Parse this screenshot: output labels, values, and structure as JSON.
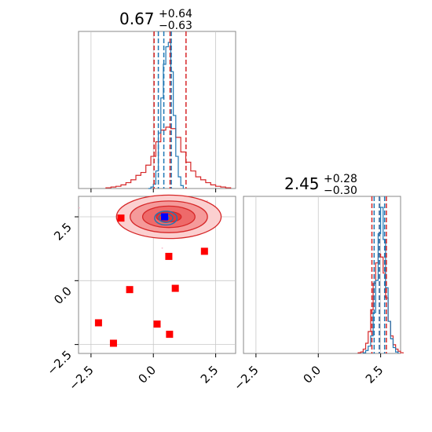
{
  "chart_data": {
    "type": "corner",
    "colors": {
      "blue": "#1f77b4",
      "red": "#d62728",
      "red_fill": "#ea5a5a",
      "pink_points": "#f5b7c8",
      "marker_red": "#ff0000",
      "marker_blue": "#0000ff",
      "grid": "#c8c8c8",
      "frame": "#888888"
    },
    "axes": {
      "x1": {
        "range": [
          -3.0,
          3.3
        ],
        "ticks": [
          -2.5,
          0.0,
          2.5
        ],
        "tick_labels": [
          "−2.5",
          "0.0",
          "2.5"
        ]
      },
      "x2": {
        "range": [
          -3.0,
          3.3
        ],
        "ticks": [
          -2.5,
          0.0,
          2.5
        ],
        "tick_labels": [
          "−2.5",
          "0.0",
          "2.5"
        ]
      },
      "y2": {
        "range": [
          -2.85,
          3.3
        ],
        "ticks": [
          -2.5,
          0.0,
          2.5
        ],
        "tick_labels": [
          "−2.5",
          "0.0",
          "2.5"
        ]
      }
    },
    "panels": {
      "param1_hist": {
        "title_value": "0.67",
        "title_plus": "+0.64",
        "title_minus": "−0.63",
        "quantiles_blue": [
          0.2,
          0.42,
          0.72
        ],
        "quantiles_red": [
          0.03,
          0.67,
          1.31
        ],
        "blue_hist": {
          "edges": [
            -0.2,
            -0.1,
            0.0,
            0.1,
            0.2,
            0.3,
            0.4,
            0.5,
            0.6,
            0.7,
            0.8,
            0.9,
            1.0,
            1.1,
            1.2
          ],
          "counts": [
            0.0,
            0.01,
            0.03,
            0.12,
            0.38,
            0.62,
            0.85,
            0.97,
            1.0,
            0.8,
            0.5,
            0.22,
            0.08,
            0.02
          ]
        },
        "red_hist": {
          "edges": [
            -1.9,
            -1.7,
            -1.5,
            -1.3,
            -1.1,
            -0.9,
            -0.7,
            -0.5,
            -0.3,
            -0.1,
            0.1,
            0.3,
            0.5,
            0.7,
            0.9,
            1.1,
            1.3,
            1.5,
            1.7,
            1.9,
            2.1,
            2.3,
            2.5,
            2.7,
            2.9,
            3.1
          ],
          "counts": [
            0.005,
            0.01,
            0.015,
            0.025,
            0.04,
            0.06,
            0.09,
            0.11,
            0.16,
            0.22,
            0.32,
            0.4,
            0.42,
            0.41,
            0.35,
            0.25,
            0.18,
            0.12,
            0.08,
            0.06,
            0.04,
            0.025,
            0.015,
            0.01,
            0.005
          ]
        }
      },
      "param2_hist": {
        "title_value": "2.45",
        "title_plus": "+0.28",
        "title_minus": "−0.30",
        "quantiles_blue": [
          2.24,
          2.45,
          2.66
        ],
        "quantiles_red": [
          2.15,
          2.45,
          2.73
        ],
        "blue_hist": {
          "edges": [
            1.8,
            1.9,
            2.0,
            2.1,
            2.2,
            2.3,
            2.4,
            2.5,
            2.6,
            2.7,
            2.8,
            2.9,
            3.0,
            3.1,
            3.2
          ],
          "counts": [
            0.005,
            0.02,
            0.05,
            0.12,
            0.28,
            0.5,
            0.82,
            1.0,
            0.78,
            0.45,
            0.22,
            0.1,
            0.04,
            0.01
          ]
        },
        "red_hist": {
          "edges": [
            1.6,
            1.7,
            1.8,
            1.9,
            2.0,
            2.1,
            2.2,
            2.3,
            2.4,
            2.5,
            2.6,
            2.7,
            2.8,
            2.9,
            3.0,
            3.1,
            3.2,
            3.3,
            3.4
          ],
          "counts": [
            0.005,
            0.01,
            0.03,
            0.07,
            0.15,
            0.3,
            0.48,
            0.62,
            0.68,
            0.66,
            0.55,
            0.38,
            0.22,
            0.12,
            0.06,
            0.03,
            0.015,
            0.005
          ]
        }
      },
      "joint": {
        "red_contour_ellipses": [
          {
            "cx": 0.62,
            "cy": 2.5,
            "rx": 0.5,
            "ry": 0.2
          },
          {
            "cx": 0.62,
            "cy": 2.5,
            "rx": 1.05,
            "ry": 0.42
          },
          {
            "cx": 0.62,
            "cy": 2.5,
            "rx": 1.55,
            "ry": 0.62
          },
          {
            "cx": 0.62,
            "cy": 2.5,
            "rx": 2.1,
            "ry": 0.85
          }
        ],
        "blue_contour_ellipses": [
          {
            "cx": 0.5,
            "cy": 2.45,
            "rx": 0.12,
            "ry": 0.08
          },
          {
            "cx": 0.5,
            "cy": 2.45,
            "rx": 0.28,
            "ry": 0.17
          },
          {
            "cx": 0.5,
            "cy": 2.45,
            "rx": 0.45,
            "ry": 0.27
          }
        ],
        "red_markers": [
          {
            "x": -1.3,
            "y": 2.45
          },
          {
            "x": 0.62,
            "y": 0.95
          },
          {
            "x": 2.05,
            "y": 1.15
          },
          {
            "x": -0.95,
            "y": -0.35
          },
          {
            "x": 0.88,
            "y": -0.3
          },
          {
            "x": -2.2,
            "y": -1.65
          },
          {
            "x": 0.15,
            "y": -1.7
          },
          {
            "x": 0.65,
            "y": -2.1
          },
          {
            "x": -1.6,
            "y": -2.45
          }
        ],
        "blue_marker": {
          "x": 0.45,
          "y": 2.5
        }
      }
    }
  }
}
